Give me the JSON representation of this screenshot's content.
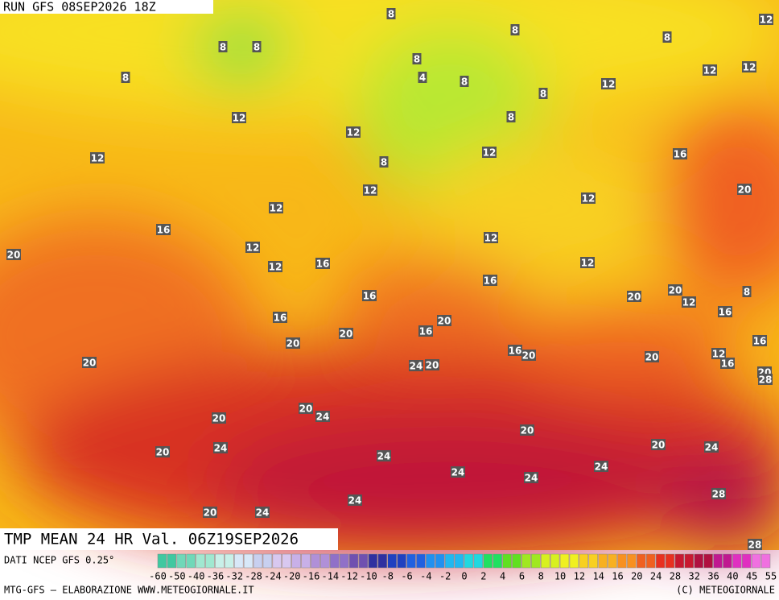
{
  "header": {
    "run": "RUN GFS 08SEP2026 18Z"
  },
  "title": "TMP MEAN 24 HR Val. 06Z19SEP2026",
  "source": "DATI NCEP GFS 0.25°",
  "footer": {
    "left": "MTG-GFS — ELABORAZIONE WWW.METEOGIORNALE.IT",
    "right": "(C) METEOGIORNALE"
  },
  "map": {
    "labels": [
      8,
      8,
      8,
      12,
      8,
      8,
      8,
      4,
      8,
      8,
      12,
      12,
      12,
      8,
      12,
      12,
      8,
      12,
      12,
      16,
      8,
      12,
      12,
      20,
      12,
      16,
      12,
      12,
      20,
      16,
      12,
      12,
      16,
      16,
      20,
      12,
      20,
      8,
      16,
      16,
      20,
      20,
      16,
      16,
      20,
      12,
      16,
      20,
      16,
      20,
      20,
      24,
      20,
      20,
      28,
      20,
      24,
      20,
      20,
      24,
      20,
      20,
      24,
      24,
      24,
      24,
      24,
      28,
      20,
      24,
      24,
      28
    ]
  },
  "scale": {
    "labels": [
      -60,
      -50,
      -40,
      -36,
      -32,
      -28,
      -24,
      -20,
      -16,
      -14,
      -12,
      -10,
      -8,
      -6,
      -4,
      -2,
      0,
      2,
      4,
      6,
      8,
      10,
      12,
      14,
      16,
      20,
      24,
      28,
      32,
      36,
      40,
      45,
      55
    ],
    "colors": [
      "#40c8a0",
      "#70d8b8",
      "#a0e8d0",
      "#c8f0e8",
      "#d8e8f8",
      "#c8d0f0",
      "#d8c8f0",
      "#c8b0e8",
      "#b090d8",
      "#9070c8",
      "#7050b0",
      "#3030a0",
      "#2040c0",
      "#2060e0",
      "#2090f0",
      "#20b8f0",
      "#20d8e0",
      "#20e060",
      "#60e020",
      "#a0e820",
      "#d8f020",
      "#f0f020",
      "#f8d020",
      "#f8b020",
      "#f89020",
      "#f06020",
      "#e83020",
      "#c81830",
      "#b01040",
      "#c01890",
      "#e030c0",
      "#f070e0"
    ]
  }
}
